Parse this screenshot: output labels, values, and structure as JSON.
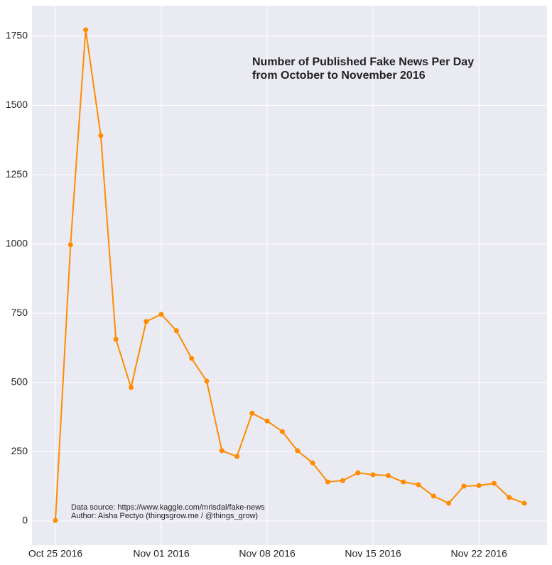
{
  "chart_data": {
    "type": "line",
    "title": "Number of Published Fake News Per Day\nfrom October to November 2016",
    "annotation": "Data source: https://www.kaggle.com/mrisdal/fake-news\nAuthor: Aisha Pectyo (thingsgrow.me / @things_grow)",
    "x": [
      "2016-10-25",
      "2016-10-26",
      "2016-10-27",
      "2016-10-28",
      "2016-10-29",
      "2016-10-30",
      "2016-10-31",
      "2016-11-01",
      "2016-11-02",
      "2016-11-03",
      "2016-11-04",
      "2016-11-05",
      "2016-11-06",
      "2016-11-07",
      "2016-11-08",
      "2016-11-09",
      "2016-11-10",
      "2016-11-11",
      "2016-11-12",
      "2016-11-13",
      "2016-11-14",
      "2016-11-15",
      "2016-11-16",
      "2016-11-17",
      "2016-11-18",
      "2016-11-19",
      "2016-11-20",
      "2016-11-21",
      "2016-11-22",
      "2016-11-23",
      "2016-11-24",
      "2016-11-25"
    ],
    "series": [
      {
        "color": "#ff8c00",
        "values": [
          2,
          997,
          1773,
          1391,
          656,
          482,
          720,
          746,
          687,
          587,
          505,
          254,
          233,
          389,
          361,
          323,
          254,
          210,
          141,
          146,
          174,
          167,
          164,
          141,
          131,
          90,
          64,
          126,
          128,
          136,
          85,
          64
        ]
      }
    ],
    "xlim": [
      "2016-10-23T10:48:00Z",
      "2016-11-26T12:00:00Z"
    ],
    "xticks": [
      {
        "value": "2016-10-25",
        "label": "Oct 25 2016"
      },
      {
        "value": "2016-11-01",
        "label": "Nov 01 2016"
      },
      {
        "value": "2016-11-08",
        "label": "Nov 08 2016"
      },
      {
        "value": "2016-11-15",
        "label": "Nov 15 2016"
      },
      {
        "value": "2016-11-22",
        "label": "Nov 22 2016"
      }
    ],
    "ylim": [
      -87,
      1860
    ],
    "yticks": [
      0,
      250,
      500,
      750,
      1000,
      1250,
      1500,
      1750
    ],
    "grid": true
  }
}
